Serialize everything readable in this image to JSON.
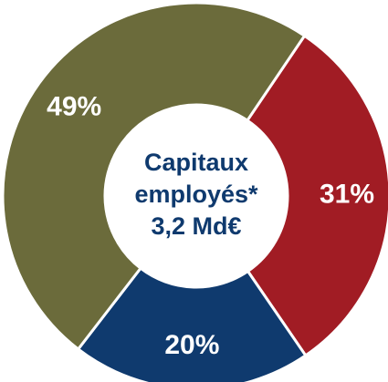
{
  "chart_data": {
    "type": "pie",
    "donut": true,
    "categories": [
      null,
      null,
      null
    ],
    "values": [
      31,
      20,
      49
    ],
    "value_labels": [
      "31%",
      "20%",
      "49%"
    ],
    "colors": [
      "#a11c24",
      "#0f3a6e",
      "#6b6b3b"
    ],
    "center_text": [
      "Capitaux",
      "employés*",
      "3,2 Md€"
    ]
  }
}
